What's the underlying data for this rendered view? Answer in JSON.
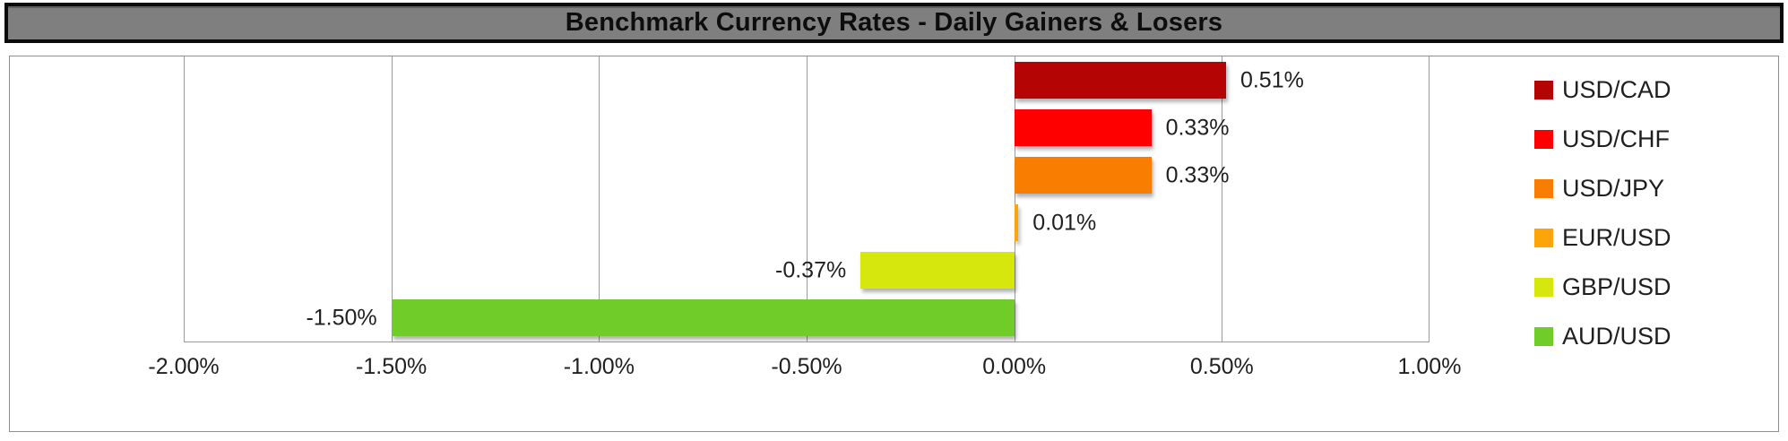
{
  "title_bar": {
    "text": "Benchmark Currency Rates - Daily Gainers & Losers",
    "background": "#7f7f7f",
    "border_color": "#0b0b0b"
  },
  "chart_data": {
    "type": "bar",
    "orientation": "horizontal",
    "title": "Benchmark Currency Rates - Daily Gainers & Losers",
    "categories": [
      "USD/CAD",
      "USD/CHF",
      "USD/JPY",
      "EUR/USD",
      "GBP/USD",
      "AUD/USD"
    ],
    "values": [
      0.51,
      0.33,
      0.33,
      0.01,
      -0.37,
      -1.5
    ],
    "data_labels": [
      "0.51%",
      "0.33%",
      "0.33%",
      "0.01%",
      "-0.37%",
      "-1.50%"
    ],
    "colors": [
      "#b40404",
      "#fe0000",
      "#f97d00",
      "#fba50a",
      "#d6e70e",
      "#70cd29"
    ],
    "xlim": [
      -2.0,
      1.0
    ],
    "x_ticks": [
      -2.0,
      -1.5,
      -1.0,
      -0.5,
      0.0,
      0.5,
      1.0
    ],
    "x_tick_labels": [
      "-2.00%",
      "-1.50%",
      "-1.00%",
      "-0.50%",
      "0.00%",
      "0.50%",
      "1.00%"
    ],
    "xlabel": "",
    "ylabel": "",
    "grid": true,
    "gridline_color": "#9b9b9b",
    "legend_position": "right",
    "legend": [
      "USD/CAD",
      "USD/CHF",
      "USD/JPY",
      "EUR/USD",
      "GBP/USD",
      "AUD/USD"
    ]
  }
}
